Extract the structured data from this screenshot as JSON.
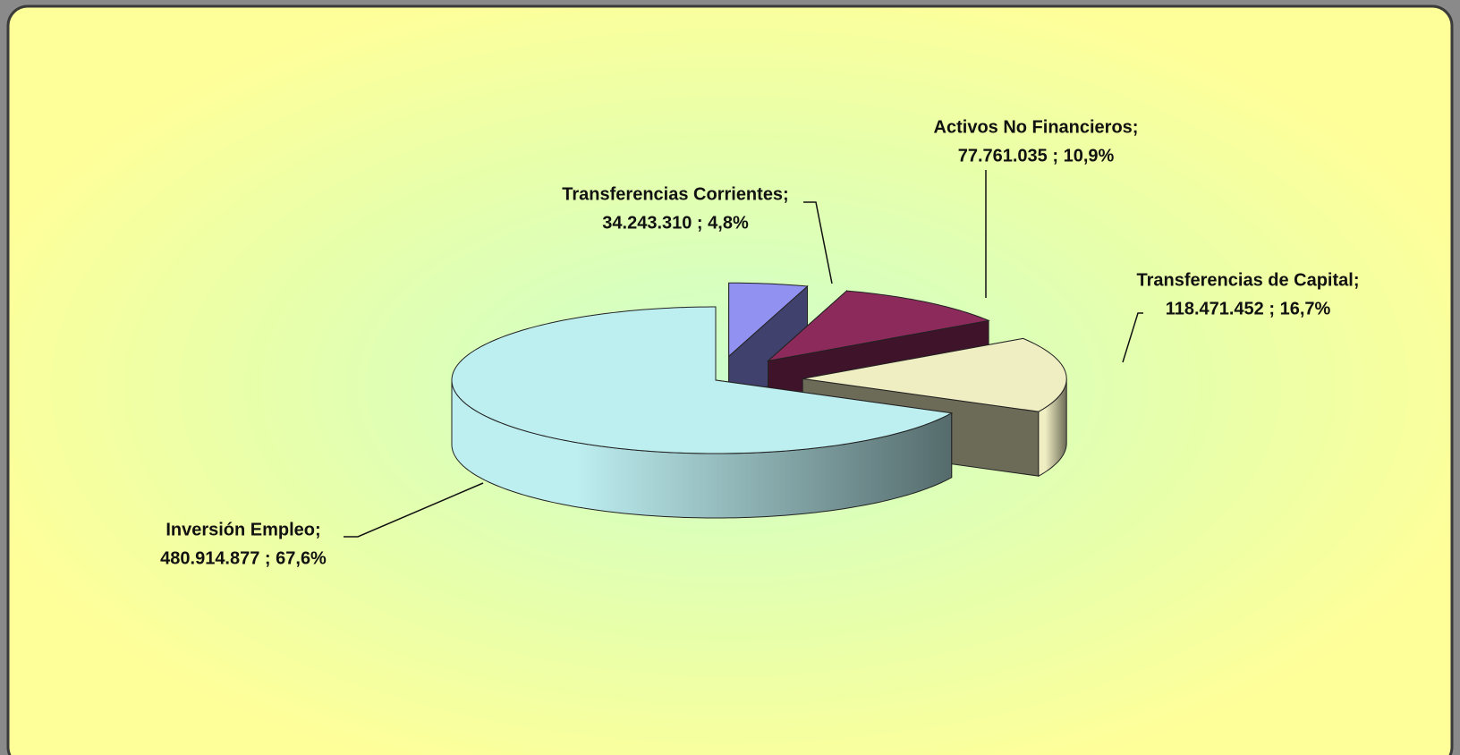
{
  "chart_data": {
    "type": "pie3d",
    "categories": [
      "Transferencias Corrientes;",
      "Activos No Financieros;",
      "Transferencias de Capital;",
      "Inversión Empleo;"
    ],
    "values": [
      34243310,
      77761035,
      118471452,
      480914877
    ],
    "value_labels": [
      "34.243.310 ; 4,8%",
      "77.761.035 ; 10,9%",
      "118.471.452 ; 16,7%",
      "480.914.877 ; 67,6%"
    ],
    "colors": [
      "#9191f2",
      "#8c2a5c",
      "#efedc2",
      "#bdeef0"
    ],
    "exploded": [
      true,
      true,
      true,
      false
    ]
  }
}
